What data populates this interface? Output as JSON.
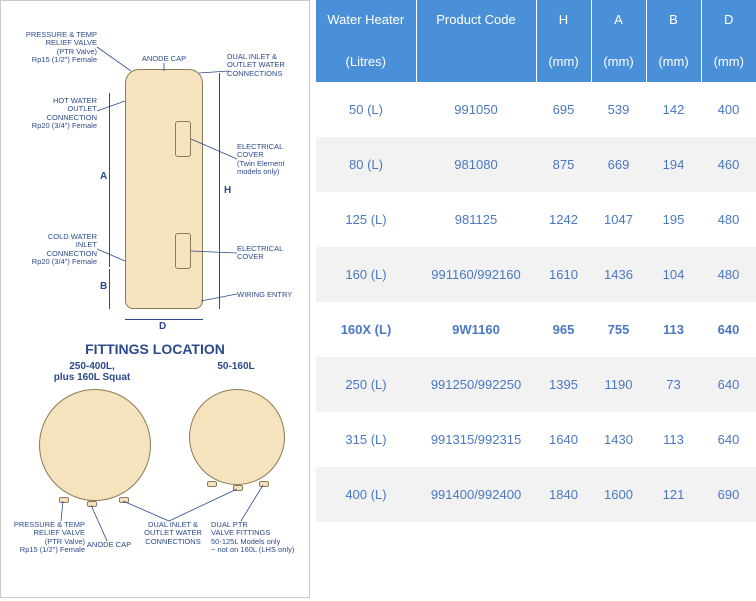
{
  "diagram": {
    "title_fittings": "FITTINGS LOCATION",
    "labels": {
      "ptr": "PRESSURE & TEMP\nRELIEF VALVE\n(PTR Valve)\nRp15 (1/2\") Female",
      "anode": "ANODE CAP",
      "dual_inlet": "DUAL INLET &\nOUTLET WATER\nCONNECTIONS",
      "hot_out": "HOT WATER\nOUTLET\nCONNECTION\nRp20 (3/4\") Female",
      "elec_cover_twin": "ELECTRICAL\nCOVER\n(Twin Element\nmodels only)",
      "elec_cover": "ELECTRICAL\nCOVER",
      "cold_in": "COLD WATER\nINLET\nCONNECTION\nRp20 (3/4\") Female",
      "wiring": "WIRING ENTRY",
      "left_circle": "250-400L,\nplus 160L Squat",
      "right_circle": "50-160L",
      "btm_ptr": "PRESSURE & TEMP\nRELIEF VALVE\n(PTR Valve)\nRp15 (1/2\") Female",
      "btm_anode": "ANODE CAP",
      "btm_dual": "DUAL INLET &\nOUTLET WATER\nCONNECTIONS",
      "btm_dualptr": "DUAL PTR\nVALVE FITTINGS\n50-125L Models only\n~ not on 160L (LHS only)"
    },
    "dims": {
      "A": "A",
      "B": "B",
      "D": "D",
      "H": "H"
    },
    "colors": {
      "tank_fill": "#f4e3bd",
      "tank_stroke": "#8a7b55",
      "text": "#2b4a8b",
      "title": "#2b4a8b"
    }
  },
  "table": {
    "header_bg": "#4a90d9",
    "header_fg": "#ffffff",
    "row_bg_even": "#f2f2f2",
    "row_bg_odd": "#ffffff",
    "text_color": "#4a78c4",
    "bold_row_index": 4,
    "columns": [
      {
        "line1": "Water Heater",
        "line2": "(Litres)"
      },
      {
        "line1": "Product Code",
        "line2": ""
      },
      {
        "line1": "H",
        "line2": "(mm)"
      },
      {
        "line1": "A",
        "line2": "(mm)"
      },
      {
        "line1": "B",
        "line2": "(mm)"
      },
      {
        "line1": "D",
        "line2": "(mm)"
      }
    ],
    "rows": [
      [
        "50 (L)",
        "991050",
        "695",
        "539",
        "142",
        "400"
      ],
      [
        "80 (L)",
        "981080",
        "875",
        "669",
        "194",
        "460"
      ],
      [
        "125 (L)",
        "981125",
        "1242",
        "1047",
        "195",
        "480"
      ],
      [
        "160 (L)",
        "991160/992160",
        "1610",
        "1436",
        "104",
        "480"
      ],
      [
        "160X (L)",
        "9W1160",
        "965",
        "755",
        "113",
        "640"
      ],
      [
        "250 (L)",
        "991250/992250",
        "1395",
        "1190",
        "73",
        "640"
      ],
      [
        "315 (L)",
        "991315/992315",
        "1640",
        "1430",
        "113",
        "640"
      ],
      [
        "400 (L)",
        "991400/992400",
        "1840",
        "1600",
        "121",
        "690"
      ]
    ]
  }
}
